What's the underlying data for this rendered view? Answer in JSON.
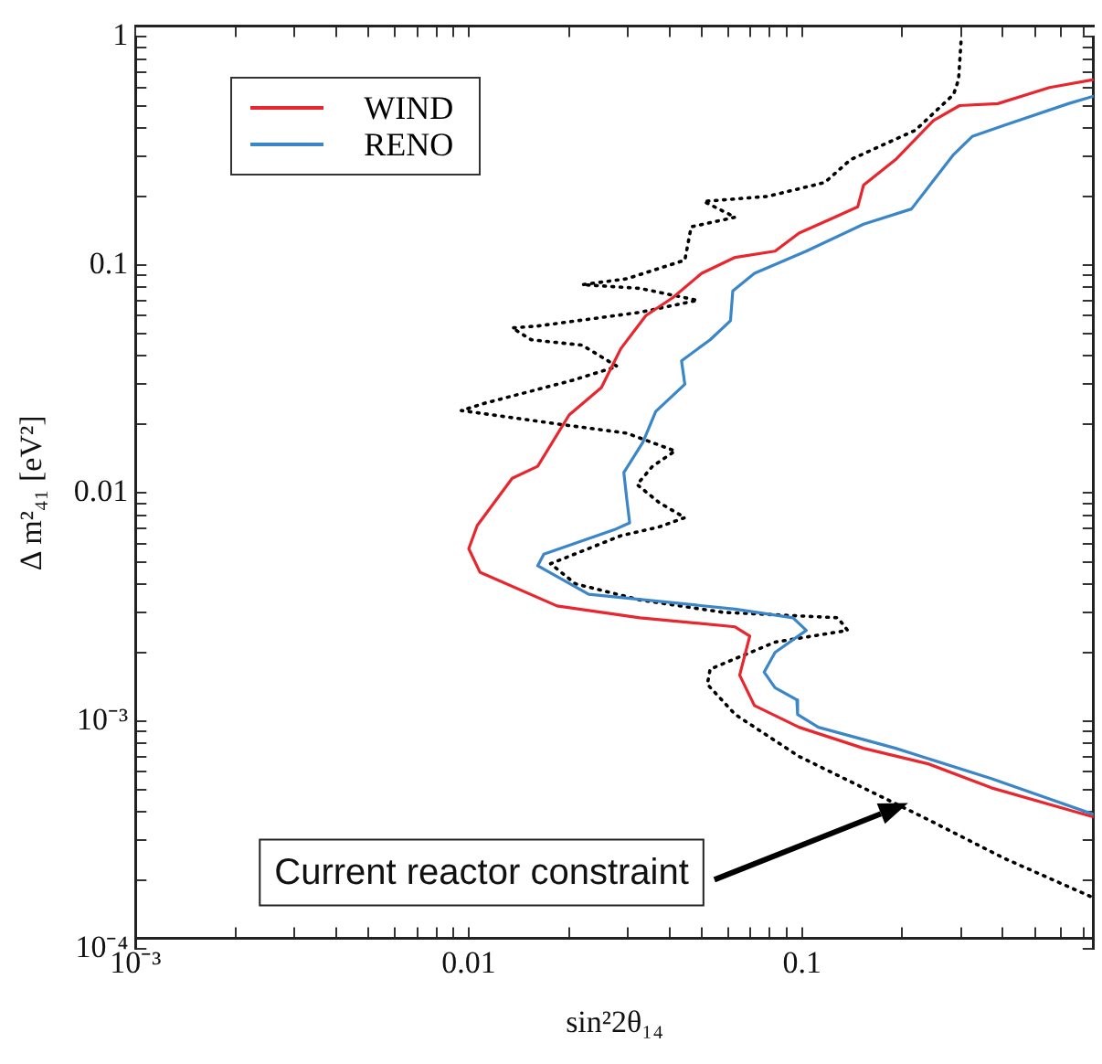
{
  "chart_data": {
    "type": "line",
    "xlabel": "sin²2θ₁₄",
    "ylabel": "Δ m²₄₁ [eV²]",
    "log": "xy",
    "grid": false,
    "marker": "none",
    "legend": "top left",
    "xlim": [
      0.001,
      0.75
    ],
    "ylim": [
      0.0001,
      1
    ],
    "xticks": [
      {
        "value": 0.001,
        "label": "10⁻³"
      },
      {
        "value": 0.002,
        "label": null
      },
      {
        "value": 0.003,
        "label": null
      },
      {
        "value": 0.004,
        "label": null
      },
      {
        "value": 0.005,
        "label": null
      },
      {
        "value": 0.006,
        "label": null
      },
      {
        "value": 0.007,
        "label": null
      },
      {
        "value": 0.008,
        "label": null
      },
      {
        "value": 0.009,
        "label": null
      },
      0.01,
      {
        "value": 0.02,
        "label": null
      },
      {
        "value": 0.03,
        "label": null
      },
      {
        "value": 0.04,
        "label": null
      },
      {
        "value": 0.05,
        "label": null
      },
      {
        "value": 0.06,
        "label": null
      },
      {
        "value": 0.07,
        "label": null
      },
      {
        "value": 0.08,
        "label": null
      },
      {
        "value": 0.09,
        "label": null
      },
      0.1,
      {
        "value": 0.2,
        "label": null
      },
      {
        "value": 0.3,
        "label": null
      },
      {
        "value": 0.4,
        "label": null
      },
      {
        "value": 0.5,
        "label": null
      },
      {
        "value": 0.6,
        "label": null
      },
      {
        "value": 0.7,
        "label": null
      }
    ],
    "yticks": [
      {
        "value": 0.0001,
        "label": "10⁻⁴"
      },
      {
        "value": 0.0002,
        "label": null
      },
      {
        "value": 0.0003,
        "label": null
      },
      {
        "value": 0.0004,
        "label": null
      },
      {
        "value": 0.0005,
        "label": null
      },
      {
        "value": 0.0006,
        "label": null
      },
      {
        "value": 0.0007,
        "label": null
      },
      {
        "value": 0.0008,
        "label": null
      },
      {
        "value": 0.0009,
        "label": null
      },
      {
        "value": 0.001,
        "label": "10⁻³"
      },
      {
        "value": 0.002,
        "label": null
      },
      {
        "value": 0.003,
        "label": null
      },
      {
        "value": 0.004,
        "label": null
      },
      {
        "value": 0.005,
        "label": null
      },
      {
        "value": 0.006,
        "label": null
      },
      {
        "value": 0.007,
        "label": null
      },
      {
        "value": 0.008,
        "label": null
      },
      {
        "value": 0.009,
        "label": null
      },
      0.01,
      {
        "value": 0.02,
        "label": null
      },
      {
        "value": 0.03,
        "label": null
      },
      {
        "value": 0.04,
        "label": null
      },
      {
        "value": 0.05,
        "label": null
      },
      {
        "value": 0.06,
        "label": null
      },
      {
        "value": 0.07,
        "label": null
      },
      {
        "value": 0.08,
        "label": null
      },
      {
        "value": 0.09,
        "label": null
      },
      0.1,
      {
        "value": 0.2,
        "label": null
      },
      {
        "value": 0.3,
        "label": null
      },
      {
        "value": 0.4,
        "label": null
      },
      {
        "value": 0.5,
        "label": null
      },
      {
        "value": 0.6,
        "label": null
      },
      {
        "value": 0.7,
        "label": null
      },
      {
        "value": 0.8,
        "label": null
      },
      {
        "value": 0.9,
        "label": null
      },
      1
    ],
    "series": [
      {
        "name": "WIND",
        "color": "#e8262e",
        "line_style": "solid",
        "x": [
          0.75,
          0.553,
          0.387,
          0.297,
          0.248,
          0.191,
          0.153,
          0.147,
          0.123,
          0.098,
          0.083,
          0.063,
          0.05,
          0.041,
          0.034,
          0.0286,
          0.025,
          0.02,
          0.0161,
          0.0135,
          0.0106,
          0.01,
          0.0108,
          0.0184,
          0.0326,
          0.063,
          0.0697,
          0.065,
          0.072,
          0.098,
          0.153,
          0.239,
          0.37,
          0.75
        ],
        "values": [
          0.65,
          0.6,
          0.51,
          0.5,
          0.43,
          0.29,
          0.224,
          0.18,
          0.16,
          0.138,
          0.115,
          0.108,
          0.092,
          0.072,
          0.06,
          0.043,
          0.029,
          0.022,
          0.0131,
          0.0116,
          0.0072,
          0.0057,
          0.0045,
          0.0032,
          0.00284,
          0.00259,
          0.00236,
          0.00159,
          0.00117,
          0.00094,
          0.00076,
          0.00065,
          0.00051,
          0.00038
        ]
      },
      {
        "name": "RENO",
        "color": "#3a86c8",
        "line_style": "solid",
        "x": [
          0.75,
          0.63,
          0.405,
          0.324,
          0.285,
          0.213,
          0.153,
          0.103,
          0.072,
          0.062,
          0.061,
          0.053,
          0.0435,
          0.0445,
          0.0364,
          0.0333,
          0.0292,
          0.0298,
          0.0304,
          0.0273,
          0.0168,
          0.0161,
          0.0229,
          0.063,
          0.094,
          0.103,
          0.083,
          0.077,
          0.083,
          0.0965,
          0.097,
          0.112,
          0.191,
          0.37,
          0.75
        ],
        "values": [
          0.55,
          0.51,
          0.41,
          0.366,
          0.305,
          0.176,
          0.151,
          0.115,
          0.092,
          0.077,
          0.057,
          0.047,
          0.038,
          0.03,
          0.0228,
          0.0167,
          0.0123,
          0.0094,
          0.0074,
          0.0069,
          0.0054,
          0.0048,
          0.0036,
          0.0031,
          0.00284,
          0.0025,
          0.002,
          0.00164,
          0.0014,
          0.00124,
          0.00107,
          0.00094,
          0.00076,
          0.00056,
          0.00039
        ]
      },
      {
        "color": "#000000",
        "line_style": "dotted",
        "x": [
          0.3,
          0.295,
          0.285,
          0.219,
          0.14,
          0.117,
          0.079,
          0.0507,
          0.063,
          0.0465,
          0.0445,
          0.0298,
          0.0219,
          0.0326,
          0.0486,
          0.0326,
          0.0161,
          0.0135,
          0.0154,
          0.0219,
          0.0279,
          0.02,
          0.0113,
          0.0095,
          0.0118,
          0.0184,
          0.0298,
          0.0416,
          0.0356,
          0.032,
          0.0372,
          0.0445,
          0.0372,
          0.0286,
          0.0176,
          0.0209,
          0.0326,
          0.058,
          0.128,
          0.137,
          0.083,
          0.053,
          0.052,
          0.063,
          0.098,
          0.239,
          0.405,
          0.736
        ],
        "values": [
          0.95,
          0.65,
          0.56,
          0.39,
          0.29,
          0.23,
          0.2,
          0.19,
          0.162,
          0.147,
          0.105,
          0.087,
          0.082,
          0.079,
          0.07,
          0.062,
          0.054,
          0.053,
          0.047,
          0.0445,
          0.0359,
          0.0309,
          0.0249,
          0.023,
          0.022,
          0.0201,
          0.0183,
          0.0153,
          0.0131,
          0.0109,
          0.0091,
          0.0078,
          0.0071,
          0.0065,
          0.0049,
          0.004,
          0.0034,
          0.003,
          0.00284,
          0.0025,
          0.00222,
          0.00169,
          0.00145,
          0.00107,
          0.0007,
          0.00037,
          0.00025,
          0.00017
        ]
      }
    ],
    "annotations": [
      "Current reactor constraint"
    ]
  }
}
